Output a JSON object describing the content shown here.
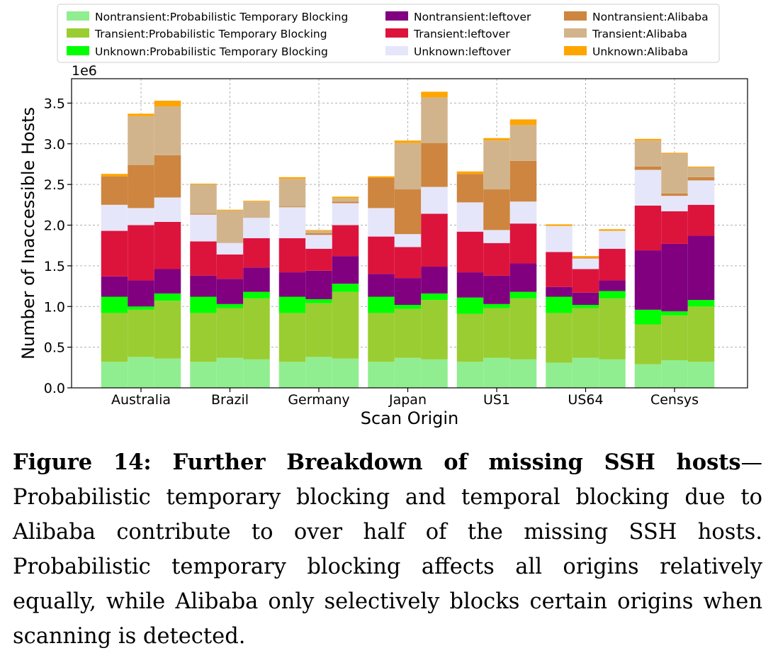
{
  "chart_data": {
    "type": "bar",
    "stacked": true,
    "xlabel": "Scan Origin",
    "ylabel": "Number of Inaccessible Hosts",
    "y_scale_label": "1e6",
    "ylim": [
      0,
      3.8
    ],
    "yticks": [
      0.0,
      0.5,
      1.0,
      1.5,
      2.0,
      2.5,
      3.0,
      3.5
    ],
    "ytick_labels": [
      "0.0",
      "0.5",
      "1.0",
      "1.5",
      "2.0",
      "2.5",
      "3.0",
      "3.5"
    ],
    "grid": true,
    "legend_position": "top",
    "groups": [
      "Australia",
      "Brazil",
      "Germany",
      "Japan",
      "US1",
      "US64",
      "Censys"
    ],
    "bars_per_group": 3,
    "series": [
      {
        "name": "Unknown:Alibaba",
        "color": "#ffa500",
        "values": [
          [
            0.03,
            0.03,
            0.07
          ],
          [
            0.01,
            0.01,
            0.01
          ],
          [
            0.02,
            0.01,
            0.02
          ],
          [
            0.02,
            0.03,
            0.07
          ],
          [
            0.03,
            0.03,
            0.07
          ],
          [
            0.02,
            0.02,
            0.02
          ],
          [
            0.02,
            0.01,
            0.01
          ]
        ]
      },
      {
        "name": "Transient:Alibaba",
        "color": "#d2b48c",
        "values": [
          [
            0,
            0.6,
            0.6
          ],
          [
            0.36,
            0.4,
            0.2
          ],
          [
            0.34,
            0.03,
            0.04
          ],
          [
            0,
            0.57,
            0.56
          ],
          [
            0,
            0.6,
            0.44
          ],
          [
            0,
            0,
            0
          ],
          [
            0.32,
            0.49,
            0.12
          ]
        ]
      },
      {
        "name": "Nontransient:Alibaba",
        "color": "#cd853f",
        "values": [
          [
            0.35,
            0.53,
            0.52
          ],
          [
            0.01,
            0,
            0
          ],
          [
            0.01,
            0.02,
            0.02
          ],
          [
            0.37,
            0.55,
            0.54
          ],
          [
            0.35,
            0.5,
            0.5
          ],
          [
            0,
            0.01,
            0
          ],
          [
            0.04,
            0.03,
            0.04
          ]
        ]
      },
      {
        "name": "Unknown:leftover",
        "color": "#e6e6fa",
        "values": [
          [
            0.32,
            0.21,
            0.3
          ],
          [
            0.33,
            0.14,
            0.25
          ],
          [
            0.38,
            0.17,
            0.27
          ],
          [
            0.35,
            0.16,
            0.33
          ],
          [
            0.36,
            0.16,
            0.27
          ],
          [
            0.32,
            0.13,
            0.22
          ],
          [
            0.44,
            0.19,
            0.3
          ]
        ]
      },
      {
        "name": "Transient:leftover",
        "color": "#dc143c",
        "values": [
          [
            0.56,
            0.68,
            0.58
          ],
          [
            0.42,
            0.3,
            0.36
          ],
          [
            0.42,
            0.27,
            0.38
          ],
          [
            0.46,
            0.38,
            0.65
          ],
          [
            0.5,
            0.4,
            0.49
          ],
          [
            0.43,
            0.29,
            0.39
          ],
          [
            0.55,
            0.4,
            0.38
          ]
        ]
      },
      {
        "name": "Nontransient:leftover",
        "color": "#800080",
        "values": [
          [
            0.25,
            0.32,
            0.3
          ],
          [
            0.26,
            0.31,
            0.3
          ],
          [
            0.3,
            0.35,
            0.34
          ],
          [
            0.28,
            0.33,
            0.33
          ],
          [
            0.31,
            0.35,
            0.35
          ],
          [
            0.12,
            0.15,
            0.13
          ],
          [
            0.73,
            0.83,
            0.79
          ]
        ]
      },
      {
        "name": "Unknown:Probabilistic Temporary Blocking",
        "color": "#00ff00",
        "values": [
          [
            0.2,
            0.04,
            0.09
          ],
          [
            0.2,
            0.05,
            0.08
          ],
          [
            0.2,
            0.05,
            0.1
          ],
          [
            0.2,
            0.05,
            0.08
          ],
          [
            0.2,
            0.05,
            0.08
          ],
          [
            0.2,
            0.04,
            0.09
          ],
          [
            0.18,
            0.05,
            0.08
          ]
        ]
      },
      {
        "name": "Transient:Probabilistic Temporary Blocking",
        "color": "#9acd32",
        "values": [
          [
            0.6,
            0.58,
            0.71
          ],
          [
            0.6,
            0.61,
            0.75
          ],
          [
            0.6,
            0.66,
            0.82
          ],
          [
            0.6,
            0.6,
            0.73
          ],
          [
            0.59,
            0.61,
            0.75
          ],
          [
            0.61,
            0.61,
            0.75
          ],
          [
            0.49,
            0.55,
            0.68
          ]
        ]
      },
      {
        "name": "Nontransient:Probabilistic Temporary Blocking",
        "color": "#90ee90",
        "values": [
          [
            0.32,
            0.38,
            0.36
          ],
          [
            0.32,
            0.37,
            0.35
          ],
          [
            0.32,
            0.38,
            0.36
          ],
          [
            0.32,
            0.37,
            0.35
          ],
          [
            0.32,
            0.37,
            0.35
          ],
          [
            0.31,
            0.37,
            0.35
          ],
          [
            0.29,
            0.34,
            0.32
          ]
        ]
      }
    ],
    "legend_order": [
      "Nontransient:Probabilistic Temporary Blocking",
      "Transient:Probabilistic Temporary Blocking",
      "Unknown:Probabilistic Temporary Blocking",
      "Nontransient:leftover",
      "Transient:leftover",
      "Unknown:leftover",
      "Nontransient:Alibaba",
      "Transient:Alibaba",
      "Unknown:Alibaba"
    ]
  },
  "caption": {
    "title": "Figure 14: Further Breakdown of missing SSH hosts",
    "dash": "—",
    "body": "Probabilistic temporary blocking and temporal blocking due to Alibaba contribute to over half of the missing SSH hosts. Probabilistic temporary blocking affects all origins relatively equally, while Alibaba only selectively blocks certain origins when scanning is detected."
  }
}
